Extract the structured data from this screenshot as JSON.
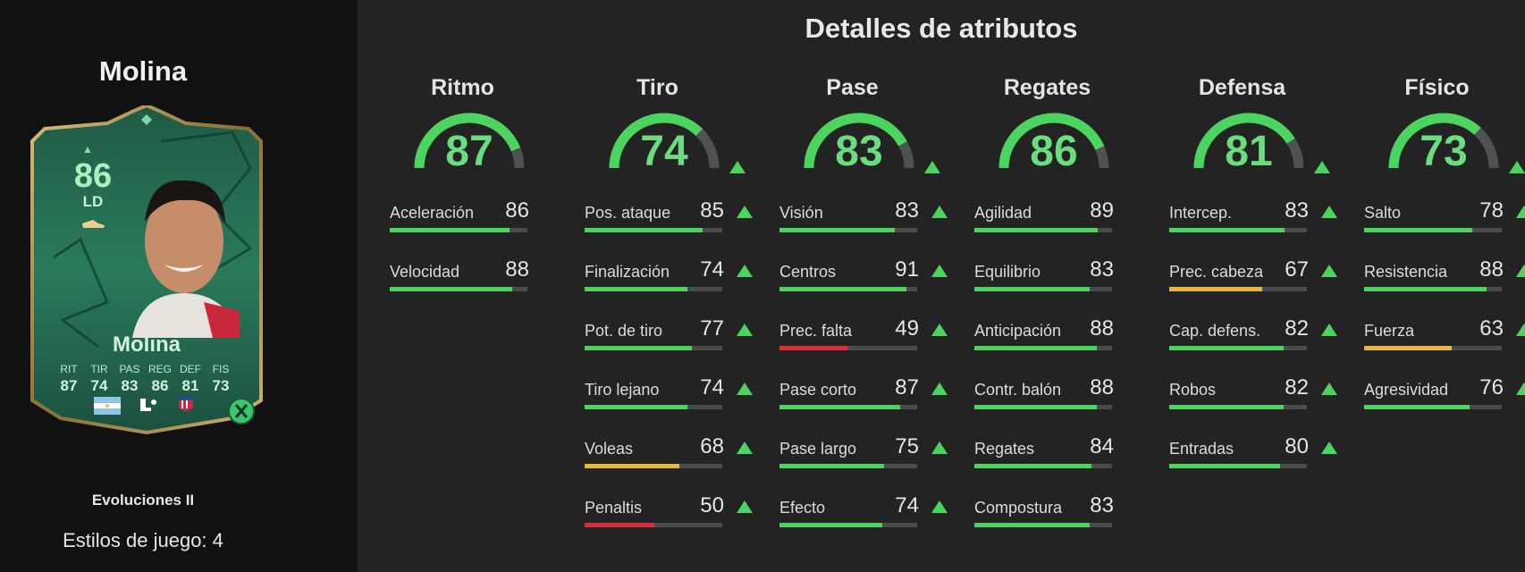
{
  "player": {
    "name": "Molina",
    "card_rating": "86",
    "card_position": "LD",
    "card_name": "Molina",
    "card_stats_labels": [
      "RIT",
      "TIR",
      "PAS",
      "REG",
      "DEF",
      "FIS"
    ],
    "card_stats_values": [
      "87",
      "74",
      "83",
      "86",
      "81",
      "73"
    ],
    "version": "Evoluciones II",
    "playstyles": "Estilos de juego: 4"
  },
  "header": {
    "title": "Detalles de atributos"
  },
  "colors": {
    "green": "#4cd461",
    "yellow": "#e8b83a",
    "red": "#d8303a",
    "track": "#505250",
    "gauge_text": "#6bdc80"
  },
  "categories": [
    {
      "name": "Ritmo",
      "value": "87",
      "arrow": false,
      "stats": [
        {
          "label": "Aceleración",
          "value": "86",
          "arrow": false
        },
        {
          "label": "Velocidad",
          "value": "88",
          "arrow": false
        }
      ]
    },
    {
      "name": "Tiro",
      "value": "74",
      "arrow": true,
      "stats": [
        {
          "label": "Pos. ataque",
          "value": "85",
          "arrow": true
        },
        {
          "label": "Finalización",
          "value": "74",
          "arrow": true
        },
        {
          "label": "Pot. de tiro",
          "value": "77",
          "arrow": true
        },
        {
          "label": "Tiro lejano",
          "value": "74",
          "arrow": true
        },
        {
          "label": "Voleas",
          "value": "68",
          "arrow": true
        },
        {
          "label": "Penaltis",
          "value": "50",
          "arrow": true
        }
      ]
    },
    {
      "name": "Pase",
      "value": "83",
      "arrow": true,
      "stats": [
        {
          "label": "Visión",
          "value": "83",
          "arrow": true
        },
        {
          "label": "Centros",
          "value": "91",
          "arrow": true
        },
        {
          "label": "Prec. falta",
          "value": "49",
          "arrow": true
        },
        {
          "label": "Pase corto",
          "value": "87",
          "arrow": true
        },
        {
          "label": "Pase largo",
          "value": "75",
          "arrow": true
        },
        {
          "label": "Efecto",
          "value": "74",
          "arrow": true
        }
      ]
    },
    {
      "name": "Regates",
      "value": "86",
      "arrow": false,
      "stats": [
        {
          "label": "Agilidad",
          "value": "89",
          "arrow": false
        },
        {
          "label": "Equilibrio",
          "value": "83",
          "arrow": false
        },
        {
          "label": "Anticipación",
          "value": "88",
          "arrow": false
        },
        {
          "label": "Contr. balón",
          "value": "88",
          "arrow": false
        },
        {
          "label": "Regates",
          "value": "84",
          "arrow": false
        },
        {
          "label": "Compostura",
          "value": "83",
          "arrow": false
        }
      ]
    },
    {
      "name": "Defensa",
      "value": "81",
      "arrow": true,
      "stats": [
        {
          "label": "Intercep.",
          "value": "83",
          "arrow": true
        },
        {
          "label": "Prec. cabeza",
          "value": "67",
          "arrow": true
        },
        {
          "label": "Cap. defens.",
          "value": "82",
          "arrow": true
        },
        {
          "label": "Robos",
          "value": "82",
          "arrow": true
        },
        {
          "label": "Entradas",
          "value": "80",
          "arrow": true
        }
      ]
    },
    {
      "name": "Físico",
      "value": "73",
      "arrow": true,
      "stats": [
        {
          "label": "Salto",
          "value": "78",
          "arrow": true
        },
        {
          "label": "Resistencia",
          "value": "88",
          "arrow": true
        },
        {
          "label": "Fuerza",
          "value": "63",
          "arrow": true
        },
        {
          "label": "Agresividad",
          "value": "76",
          "arrow": true
        }
      ]
    }
  ]
}
